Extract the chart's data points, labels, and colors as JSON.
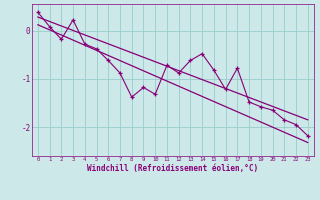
{
  "xlabel": "Windchill (Refroidissement éolien,°C)",
  "bg_color": "#cce8e8",
  "grid_color": "#99cccc",
  "line_color": "#880077",
  "xlim": [
    -0.5,
    23.5
  ],
  "ylim": [
    -2.6,
    0.55
  ],
  "yticks": [
    0,
    -1,
    -2
  ],
  "ytick_labels": [
    "0",
    "-1",
    "-2"
  ],
  "xticks": [
    0,
    1,
    2,
    3,
    4,
    5,
    6,
    7,
    8,
    9,
    10,
    11,
    12,
    13,
    14,
    15,
    16,
    17,
    18,
    19,
    20,
    21,
    22,
    23
  ],
  "line1_x": [
    0,
    1,
    2,
    3,
    4,
    5,
    6,
    7,
    8,
    9,
    10,
    11,
    12,
    13,
    14,
    15,
    16,
    17,
    18,
    19,
    20,
    21,
    22,
    23
  ],
  "line1_y": [
    0.38,
    0.08,
    -0.18,
    0.22,
    -0.28,
    -0.38,
    -0.62,
    -0.88,
    -1.38,
    -1.18,
    -1.32,
    -0.72,
    -0.88,
    -0.62,
    -0.48,
    -0.82,
    -1.22,
    -0.78,
    -1.48,
    -1.58,
    -1.65,
    -1.85,
    -1.95,
    -2.18
  ],
  "trend1_x": [
    0,
    23
  ],
  "trend1_y": [
    0.28,
    -1.85
  ],
  "trend2_x": [
    0,
    23
  ],
  "trend2_y": [
    0.12,
    -2.32
  ]
}
